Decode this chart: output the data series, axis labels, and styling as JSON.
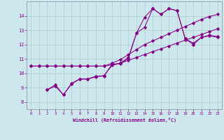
{
  "xlabel": "Windchill (Refroidissement éolien,°C)",
  "background_color": "#cce8ec",
  "grid_color": "#aacccc",
  "line_color": "#880088",
  "xlim": [
    -0.5,
    23.5
  ],
  "ylim": [
    7.5,
    15.0
  ],
  "xticks": [
    0,
    1,
    2,
    3,
    4,
    5,
    6,
    7,
    8,
    9,
    10,
    11,
    12,
    13,
    14,
    15,
    16,
    17,
    18,
    19,
    20,
    21,
    22,
    23
  ],
  "yticks": [
    8,
    9,
    10,
    11,
    12,
    13,
    14
  ],
  "series1_x": [
    0,
    1,
    2,
    3,
    4,
    5,
    6,
    7,
    8,
    9,
    10,
    11,
    12,
    13,
    14,
    15,
    16,
    17,
    18,
    19,
    20,
    21,
    22,
    23
  ],
  "series1_y": [
    10.5,
    10.5,
    10.5,
    10.5,
    10.5,
    10.5,
    10.5,
    10.5,
    10.5,
    10.5,
    10.6,
    10.7,
    10.9,
    11.1,
    11.3,
    11.5,
    11.7,
    11.9,
    12.1,
    12.3,
    12.5,
    12.7,
    12.9,
    13.1
  ],
  "series2_x": [
    0,
    1,
    2,
    3,
    4,
    5,
    6,
    7,
    8,
    9,
    10,
    11,
    12,
    13,
    14,
    15,
    16,
    17,
    18,
    19,
    20,
    21,
    22,
    23
  ],
  "series2_y": [
    10.5,
    10.5,
    10.5,
    10.5,
    10.5,
    10.5,
    10.5,
    10.5,
    10.5,
    10.5,
    10.7,
    10.95,
    11.3,
    11.65,
    12.0,
    12.25,
    12.5,
    12.75,
    13.0,
    13.25,
    13.5,
    13.75,
    13.95,
    14.1
  ],
  "series3_x": [
    2,
    3,
    4,
    5,
    6,
    7,
    8,
    9,
    10,
    11,
    12,
    13,
    14,
    15,
    16,
    17,
    18,
    19,
    20,
    21,
    22,
    23
  ],
  "series3_y": [
    8.85,
    9.2,
    8.5,
    9.3,
    9.6,
    9.6,
    9.8,
    9.8,
    10.65,
    10.65,
    11.05,
    12.8,
    13.9,
    14.5,
    14.1,
    14.5,
    14.35,
    12.4,
    12.0,
    12.5,
    12.6,
    12.5
  ],
  "series4_x": [
    2,
    3,
    4,
    5,
    6,
    7,
    8,
    9,
    10,
    11,
    12,
    13,
    14,
    15,
    16,
    17,
    18,
    19,
    20,
    21,
    22,
    23
  ],
  "series4_y": [
    8.85,
    9.1,
    8.5,
    9.25,
    9.6,
    9.6,
    9.75,
    9.85,
    10.55,
    10.7,
    11.1,
    12.8,
    13.2,
    14.5,
    14.1,
    14.5,
    14.35,
    12.4,
    12.1,
    12.5,
    12.65,
    12.55
  ]
}
